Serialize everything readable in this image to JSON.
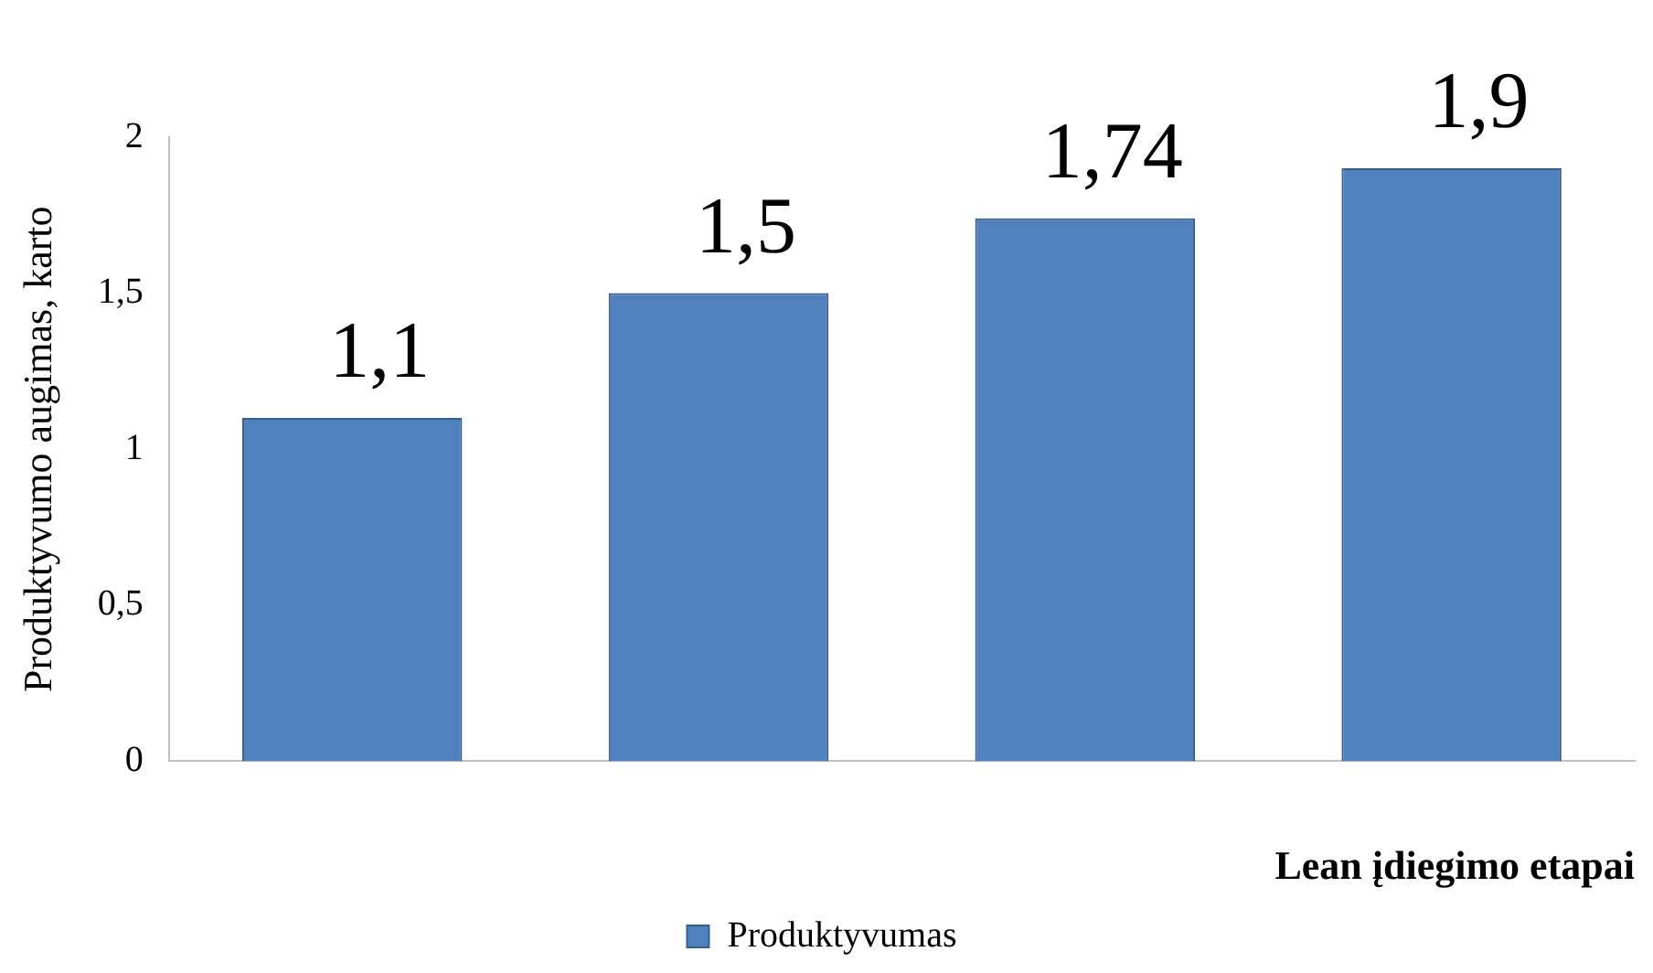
{
  "chart_data": {
    "type": "bar",
    "ylabel": "Produktyvumo augimas, karto",
    "xlabel": "Lean įdiegimo etapai",
    "categories": [
      null,
      null,
      null,
      null
    ],
    "series": [
      {
        "name": "Produktyvumas",
        "color": "#4f81bd",
        "values": [
          1.1,
          1.5,
          1.74,
          1.9
        ],
        "value_labels": [
          "1,1",
          "1,5",
          "1,74",
          "1,9"
        ]
      }
    ],
    "ylim": [
      0,
      2
    ],
    "yticks": [
      0,
      {
        "value": 0.5,
        "label": "0,5"
      },
      1,
      {
        "value": 1.5,
        "label": "1,5"
      },
      2
    ],
    "grid": false,
    "legend": "bottom"
  }
}
